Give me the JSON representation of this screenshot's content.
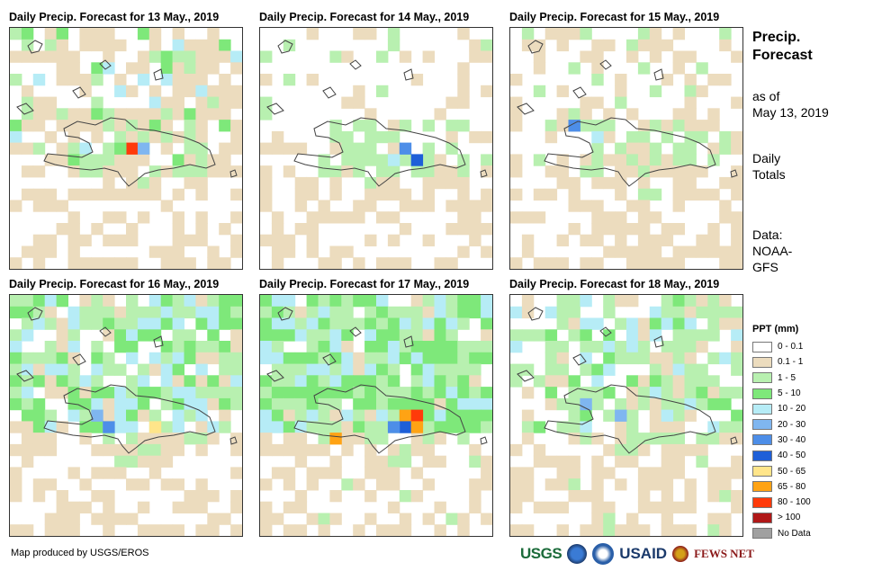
{
  "panels": [
    {
      "title": "Daily Precip. Forecast for 13 May., 2019"
    },
    {
      "title": "Daily Precip. Forecast for 14 May., 2019"
    },
    {
      "title": "Daily Precip. Forecast for 15 May., 2019"
    },
    {
      "title": "Daily Precip. Forecast for 16 May., 2019"
    },
    {
      "title": "Daily Precip. Forecast for 17 May., 2019"
    },
    {
      "title": "Daily Precip. Forecast for 18 May., 2019"
    }
  ],
  "side": {
    "title_line1": "Precip.",
    "title_line2": "Forecast",
    "asof_line1": "as of",
    "asof_line2": "May 13, 2019",
    "daily_line1": "Daily",
    "daily_line2": "Totals",
    "data_line1": "Data:",
    "data_line2": "NOAA-",
    "data_line3": "GFS"
  },
  "legend": {
    "title": "PPT (mm)",
    "items": [
      {
        "label": "0 - 0.1",
        "color": "#ffffff"
      },
      {
        "label": "0.1 - 1",
        "color": "#ecdcbe"
      },
      {
        "label": "1 - 5",
        "color": "#b8f0b0"
      },
      {
        "label": "5 - 10",
        "color": "#7ee87a"
      },
      {
        "label": "10 - 20",
        "color": "#b6ecf6"
      },
      {
        "label": "20 - 30",
        "color": "#7fb6f0"
      },
      {
        "label": "30 - 40",
        "color": "#4d8ee8"
      },
      {
        "label": "40 - 50",
        "color": "#1e5fd8"
      },
      {
        "label": "50 - 65",
        "color": "#ffe58a"
      },
      {
        "label": "65 - 80",
        "color": "#ffa314"
      },
      {
        "label": "80 - 100",
        "color": "#ff3a0a"
      },
      {
        "label": "> 100",
        "color": "#b01818"
      },
      {
        "label": "No Data",
        "color": "#a0a0a0"
      }
    ]
  },
  "footer": {
    "credit": "Map produced by USGS/EROS",
    "logo_usgs": "USGS",
    "logo_usaid": "USAID",
    "logo_fews": "FEWS NET"
  }
}
